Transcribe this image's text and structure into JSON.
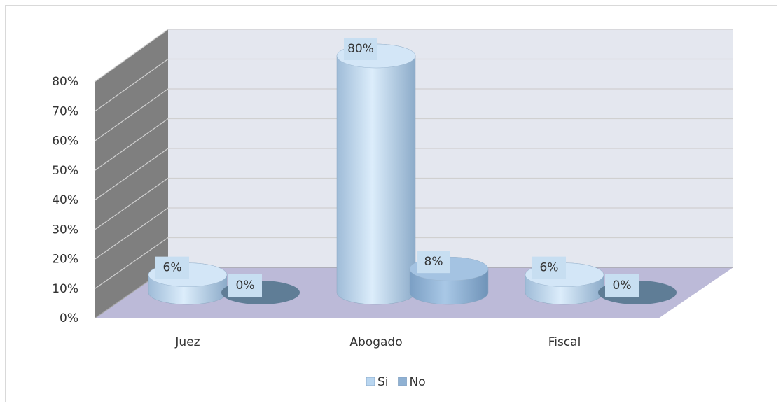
{
  "chart_data": {
    "type": "bar3d",
    "categories": [
      "Juez",
      "Abogado",
      "Fiscal"
    ],
    "series": [
      {
        "name": "Si",
        "color": "#b9d6f0",
        "values": [
          6,
          80,
          6
        ],
        "value_labels": [
          "6%",
          "80%",
          "6%"
        ]
      },
      {
        "name": "No",
        "color": "#8fb1d3",
        "values": [
          0,
          8,
          0
        ],
        "value_labels": [
          "0%",
          "8%",
          "0%"
        ]
      }
    ],
    "ylim": [
      0,
      80
    ],
    "yticks": [
      {
        "value": 0,
        "label": "0%"
      },
      {
        "value": 10,
        "label": "10%"
      },
      {
        "value": 20,
        "label": "20%"
      },
      {
        "value": 30,
        "label": "30%"
      },
      {
        "value": 40,
        "label": "40%"
      },
      {
        "value": 50,
        "label": "50%"
      },
      {
        "value": 60,
        "label": "60%"
      },
      {
        "value": 70,
        "label": "70%"
      },
      {
        "value": 80,
        "label": "80%"
      }
    ],
    "grid": true,
    "legend": "bottom"
  }
}
